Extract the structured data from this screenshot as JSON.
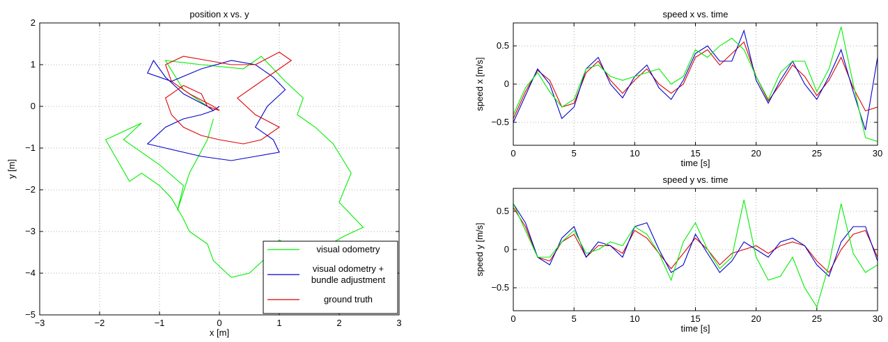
{
  "colors": {
    "visual_odometry": "#00ee00",
    "visual_odometry_ba": "#0000cc",
    "ground_truth": "#dd0000"
  },
  "chart_data": [
    {
      "id": "position",
      "type": "line",
      "title": "position x vs. y",
      "xlabel": "x [m]",
      "ylabel": "y [m]",
      "xlim": [
        -3,
        3
      ],
      "ylim": [
        -5,
        2
      ],
      "xticks": [
        -3,
        -2,
        -1,
        0,
        1,
        2,
        3
      ],
      "yticks": [
        -5,
        -4,
        -3,
        -2,
        -1,
        0,
        1,
        2
      ],
      "xtick_labels": [
        "−3",
        "−2",
        "−1",
        "0",
        "1",
        "2",
        "3"
      ],
      "ytick_labels": [
        "−5",
        "−4",
        "−3",
        "−2",
        "−1",
        "0",
        "1",
        "2"
      ],
      "grid": true,
      "legend": {
        "placement": "bottom-right",
        "entries": [
          {
            "key": "visual_odometry",
            "lines": [
              "visual odometry"
            ]
          },
          {
            "key": "visual_odometry_ba",
            "lines": [
              "visual odometry +",
              "bundle adjustment"
            ]
          },
          {
            "key": "ground_truth",
            "lines": [
              "ground truth"
            ]
          }
        ]
      },
      "series": [
        {
          "key": "visual_odometry",
          "x": [
            -0.1,
            -0.6,
            -0.9,
            -0.3,
            0.4,
            0.7,
            1.1,
            1.4,
            1.3,
            1.6,
            1.9,
            2.2,
            2.0,
            2.4,
            2.1,
            1.6,
            1.2,
            1.0,
            0.8,
            0.5,
            0.2,
            -0.1,
            -0.2,
            -0.5,
            -0.6,
            -0.8,
            -1.0,
            -1.3,
            -1.5,
            -1.7,
            -1.9,
            -1.6,
            -1.3,
            -1.6,
            -1.0,
            -0.6,
            -0.7,
            -0.5,
            -0.2,
            -0.1
          ],
          "y": [
            -0.1,
            0.4,
            1.1,
            1.0,
            0.9,
            1.2,
            0.6,
            0.2,
            -0.2,
            -0.5,
            -0.9,
            -1.6,
            -2.3,
            -2.9,
            -3.1,
            -3.5,
            -3.4,
            -3.2,
            -3.6,
            -4.0,
            -4.1,
            -3.7,
            -3.3,
            -3.0,
            -2.7,
            -2.2,
            -1.9,
            -1.6,
            -1.8,
            -1.3,
            -0.8,
            -0.6,
            -0.4,
            -0.8,
            -1.4,
            -1.9,
            -2.5,
            -1.6,
            -0.8,
            -0.3
          ]
        },
        {
          "key": "visual_odometry_ba",
          "x": [
            -0.2,
            -0.6,
            -0.9,
            -1.1,
            -1.2,
            -0.8,
            -0.3,
            0.2,
            0.6,
            0.9,
            1.1,
            0.8,
            0.6,
            0.9,
            1.0,
            0.6,
            0.2,
            -0.3,
            -0.6,
            -0.9,
            -1.2,
            -0.9,
            -0.6,
            -0.3,
            -0.1,
            0.0,
            -0.1,
            -0.2
          ],
          "y": [
            0.0,
            0.3,
            0.7,
            1.1,
            0.8,
            0.6,
            0.9,
            1.1,
            1.0,
            0.7,
            0.4,
            0.0,
            -0.5,
            -0.8,
            -1.1,
            -1.2,
            -1.3,
            -1.2,
            -1.1,
            -1.0,
            -0.9,
            -0.5,
            -0.3,
            -0.2,
            -0.1,
            0.0,
            -0.1,
            0.0
          ]
        },
        {
          "key": "ground_truth",
          "x": [
            -0.1,
            -0.5,
            -0.8,
            -0.9,
            -0.6,
            -0.2,
            0.2,
            0.6,
            1.0,
            1.2,
            0.9,
            0.6,
            0.3,
            0.6,
            1.0,
            0.7,
            0.4,
            0.0,
            -0.3,
            -0.6,
            -0.8,
            -0.9,
            -0.6,
            -0.3,
            -0.2,
            0.0,
            -0.1
          ],
          "y": [
            0.0,
            0.3,
            0.6,
            1.0,
            1.2,
            1.1,
            1.0,
            1.0,
            1.3,
            1.1,
            0.8,
            0.5,
            0.2,
            -0.2,
            -0.5,
            -0.8,
            -0.9,
            -0.8,
            -0.7,
            -0.5,
            -0.2,
            0.2,
            0.5,
            0.3,
            0.0,
            -0.1,
            0.0
          ]
        }
      ]
    },
    {
      "id": "speed_x",
      "type": "line",
      "title": "speed x vs. time",
      "xlabel": "time [s]",
      "ylabel": "speed x [m/s]",
      "xlim": [
        0,
        30
      ],
      "ylim": [
        -0.8,
        0.8
      ],
      "xticks": [
        0,
        5,
        10,
        15,
        20,
        25,
        30
      ],
      "yticks": [
        -0.5,
        0,
        0.5
      ],
      "xtick_labels": [
        "0",
        "5",
        "10",
        "15",
        "20",
        "25",
        "30"
      ],
      "ytick_labels": [
        "−0.5",
        "0",
        "0.5"
      ],
      "grid": true,
      "series": [
        {
          "key": "ground_truth",
          "x": [
            0,
            1,
            2,
            3,
            4,
            5,
            6,
            7,
            8,
            9,
            10,
            11,
            12,
            13,
            14,
            15,
            16,
            17,
            18,
            19,
            20,
            21,
            22,
            23,
            24,
            25,
            26,
            27,
            28,
            29,
            30
          ],
          "y": [
            -0.45,
            -0.1,
            0.18,
            0.05,
            -0.3,
            -0.25,
            0.15,
            0.3,
            0.05,
            -0.12,
            0.05,
            0.2,
            0.0,
            -0.12,
            0.0,
            0.35,
            0.45,
            0.25,
            0.4,
            0.55,
            0.1,
            -0.22,
            0.0,
            0.25,
            0.1,
            -0.15,
            0.05,
            0.35,
            -0.05,
            -0.35,
            -0.3
          ]
        },
        {
          "key": "visual_odometry_ba",
          "x": [
            0,
            1,
            2,
            3,
            4,
            5,
            6,
            7,
            8,
            9,
            10,
            11,
            12,
            13,
            14,
            15,
            16,
            17,
            18,
            19,
            20,
            21,
            22,
            23,
            24,
            25,
            26,
            27,
            28,
            29,
            30
          ],
          "y": [
            -0.5,
            -0.15,
            0.2,
            0.0,
            -0.45,
            -0.3,
            0.2,
            0.35,
            0.0,
            -0.18,
            0.1,
            0.25,
            -0.05,
            -0.2,
            0.05,
            0.4,
            0.5,
            0.3,
            0.3,
            0.7,
            0.05,
            -0.25,
            0.05,
            0.3,
            0.0,
            -0.2,
            0.1,
            0.45,
            -0.1,
            -0.6,
            0.35
          ]
        },
        {
          "key": "visual_odometry",
          "x": [
            0,
            1,
            2,
            3,
            4,
            5,
            6,
            7,
            8,
            9,
            10,
            11,
            12,
            13,
            14,
            15,
            16,
            17,
            18,
            19,
            20,
            21,
            22,
            23,
            24,
            25,
            26,
            27,
            28,
            29,
            30
          ],
          "y": [
            -0.4,
            -0.05,
            0.15,
            -0.1,
            -0.3,
            -0.2,
            0.2,
            0.25,
            0.1,
            0.05,
            0.1,
            0.15,
            0.2,
            0.0,
            0.1,
            0.45,
            0.35,
            0.5,
            0.6,
            0.45,
            0.1,
            -0.2,
            0.15,
            0.3,
            0.3,
            -0.1,
            0.2,
            0.75,
            0.0,
            -0.7,
            -0.75
          ]
        }
      ]
    },
    {
      "id": "speed_y",
      "type": "line",
      "title": "speed y vs. time",
      "xlabel": "time [s]",
      "ylabel": "speed y [m/s]",
      "xlim": [
        0,
        30
      ],
      "ylim": [
        -0.8,
        0.8
      ],
      "xticks": [
        0,
        5,
        10,
        15,
        20,
        25,
        30
      ],
      "yticks": [
        -0.5,
        0,
        0.5
      ],
      "xtick_labels": [
        "0",
        "5",
        "10",
        "15",
        "20",
        "25",
        "30"
      ],
      "ytick_labels": [
        "−0.5",
        "0",
        "0.5"
      ],
      "grid": true,
      "series": [
        {
          "key": "ground_truth",
          "x": [
            0,
            1,
            2,
            3,
            4,
            5,
            6,
            7,
            8,
            9,
            10,
            11,
            12,
            13,
            14,
            15,
            16,
            17,
            18,
            19,
            20,
            21,
            22,
            23,
            24,
            25,
            26,
            27,
            28,
            29,
            30
          ],
          "y": [
            0.55,
            0.3,
            -0.1,
            -0.15,
            0.1,
            0.2,
            -0.1,
            0.05,
            0.05,
            -0.05,
            0.25,
            0.15,
            -0.05,
            -0.25,
            -0.05,
            0.15,
            0.0,
            -0.2,
            -0.05,
            0.0,
            0.05,
            -0.05,
            0.05,
            0.1,
            0.05,
            -0.15,
            -0.3,
            0.0,
            0.2,
            0.25,
            -0.1
          ]
        },
        {
          "key": "visual_odometry_ba",
          "x": [
            0,
            1,
            2,
            3,
            4,
            5,
            6,
            7,
            8,
            9,
            10,
            11,
            12,
            13,
            14,
            15,
            16,
            17,
            18,
            19,
            20,
            21,
            22,
            23,
            24,
            25,
            26,
            27,
            28,
            29,
            30
          ],
          "y": [
            0.6,
            0.35,
            -0.1,
            -0.2,
            0.15,
            0.3,
            -0.1,
            0.1,
            0.05,
            -0.1,
            0.3,
            0.35,
            0.0,
            -0.3,
            -0.2,
            0.2,
            -0.05,
            -0.3,
            -0.15,
            0.1,
            0.0,
            -0.1,
            0.1,
            0.15,
            0.05,
            -0.2,
            -0.35,
            0.1,
            0.3,
            0.3,
            -0.15
          ]
        },
        {
          "key": "visual_odometry",
          "x": [
            0,
            1,
            2,
            3,
            4,
            5,
            6,
            7,
            8,
            9,
            10,
            11,
            12,
            13,
            14,
            15,
            16,
            17,
            18,
            19,
            20,
            21,
            22,
            23,
            24,
            25,
            26,
            27,
            28,
            29,
            30
          ],
          "y": [
            0.6,
            0.25,
            -0.1,
            -0.1,
            0.1,
            0.25,
            -0.05,
            0.0,
            0.1,
            0.05,
            0.3,
            0.2,
            -0.05,
            -0.4,
            0.1,
            0.35,
            0.0,
            -0.25,
            -0.1,
            0.65,
            -0.1,
            -0.4,
            -0.35,
            -0.1,
            -0.5,
            -0.75,
            -0.2,
            0.6,
            -0.05,
            -0.3,
            -0.2
          ]
        }
      ]
    }
  ]
}
